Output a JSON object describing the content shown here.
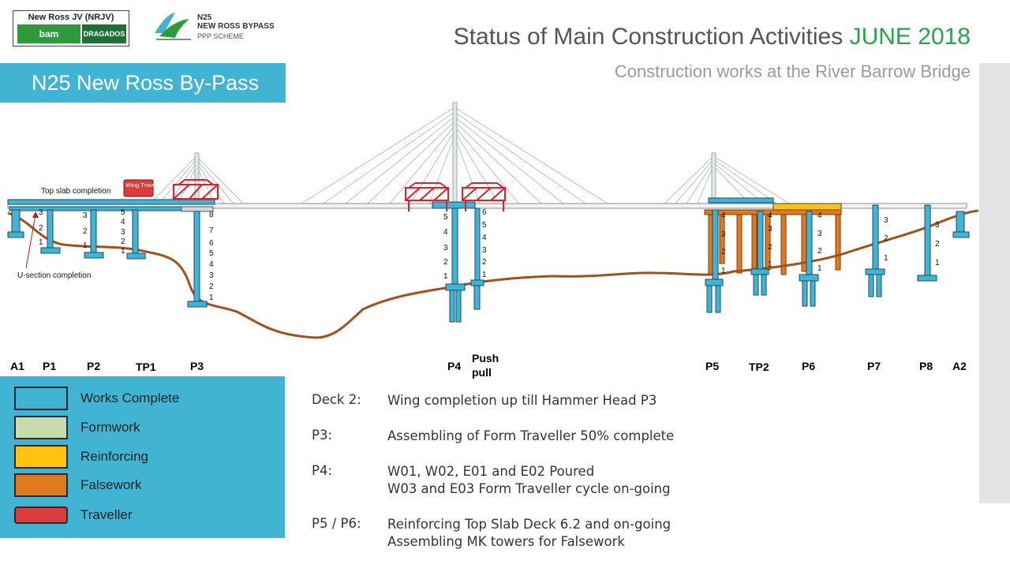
{
  "header": {
    "logo_jv_title": "New Ross JV (NRJV)",
    "logo_jv_partner1": "bam",
    "logo_jv_partner2": "DRAGADOS",
    "logo_scheme_line1": "N25",
    "logo_scheme_line2": "NEW ROSS BYPASS",
    "logo_scheme_line3": "PPP SCHEME",
    "title_main": "Status of Main Construction Activities",
    "title_highlight": "JUNE 2018",
    "subtitle": "Construction works at the River Barrow Bridge",
    "scheme_banner": "N25 New Ross By-Pass"
  },
  "colors": {
    "banner": "#40b4d2",
    "works_complete": "#40b4d2",
    "formwork": "#c7dbad",
    "reinforcing": "#ffc20e",
    "falsework": "#e07a1f",
    "traveller": "#dc3c3c",
    "ground": "#a0521d",
    "highlight": "#25a64a"
  },
  "diagram": {
    "annotations": {
      "top_slab": "Top slab completion",
      "u_section": "U-section completion",
      "wing_traveller": "Wing Traveller"
    },
    "pier_labels": [
      "A1",
      "P1",
      "P2",
      "TP1",
      "P3",
      "P4",
      "Push pull",
      "P5",
      "TP2",
      "P6",
      "P7",
      "P8",
      "A2"
    ]
  },
  "legend": [
    {
      "label": "Works Complete",
      "color_key": "works_complete"
    },
    {
      "label": "Formwork",
      "color_key": "formwork"
    },
    {
      "label": "Reinforcing",
      "color_key": "reinforcing"
    },
    {
      "label": "Falsework",
      "color_key": "falsework"
    },
    {
      "label": "Traveller",
      "color_key": "traveller"
    }
  ],
  "notes": [
    {
      "key": "Deck 2:",
      "lines": [
        "Wing completion up till Hammer Head P3"
      ]
    },
    {
      "key": "P3:",
      "lines": [
        "Assembling of Form Traveller 50% complete"
      ]
    },
    {
      "key": "P4:",
      "lines": [
        "W01, W02, E01 and E02 Poured",
        "W03 and E03 Form Traveller cycle on-going"
      ]
    },
    {
      "key": "P5 / P6:",
      "lines": [
        "Reinforcing Top Slab Deck 6.2 and on-going",
        "Assembling MK towers for Falsework"
      ]
    }
  ]
}
